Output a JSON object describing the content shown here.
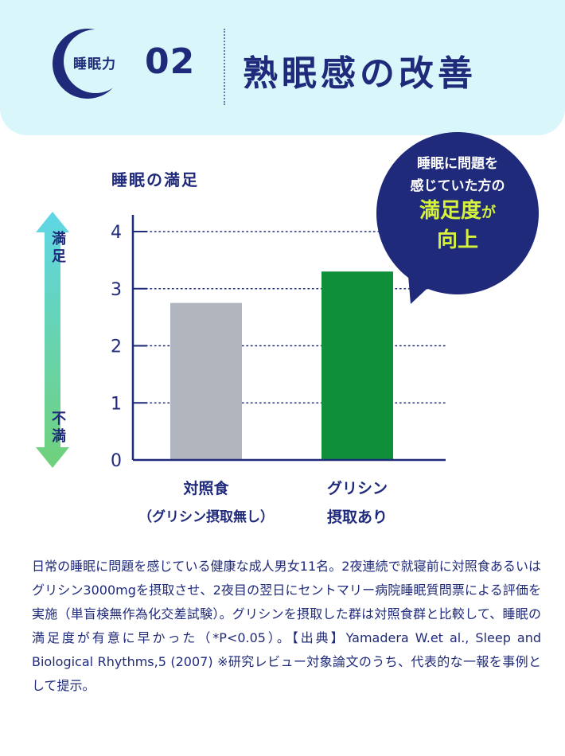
{
  "header": {
    "badge_label": "睡眠力",
    "badge_number": "02",
    "title": "熟眠感の改善"
  },
  "bubble": {
    "line1": "睡眠に問題を",
    "line2": "感じていた方の",
    "highlight": "満足度",
    "particle": "が",
    "line4": "向上"
  },
  "axis_arrow": {
    "top_label": "満足",
    "bottom_label": "不満"
  },
  "chart_data": {
    "type": "bar",
    "title": "睡眠の満足",
    "categories": [
      "対照食（グリシン摂取無し）",
      "グリシン摂取あり"
    ],
    "category_lines": [
      [
        "対照食",
        "（グリシン摂取無し）"
      ],
      [
        "グリシン",
        "摂取あり"
      ]
    ],
    "values": [
      2.75,
      3.3
    ],
    "colors": [
      "#b0b5be",
      "#0f8f3a"
    ],
    "ylim": [
      0,
      4
    ],
    "yticks": [
      "0",
      "1",
      "2",
      "3",
      "4"
    ],
    "grid": true
  },
  "footnote": "日常の睡眠に問題を感じている健康な成人男女11名。2夜連続で就寝前に対照食あるいはグリシン3000mgを摂取させ、2夜目の翌日にセントマリー病院睡眠質問票による評価を実施（単盲検無作為化交差試験）。グリシンを摂取した群は対照食群と比較して、睡眠の満足度が有意に早かった（*P<0.05）。【出典】Yamadera W.et al., Sleep and Biological Rhythms,5 (2007) ※研究レビュー対象論文のうち、代表的な一報を事例として提示。"
}
